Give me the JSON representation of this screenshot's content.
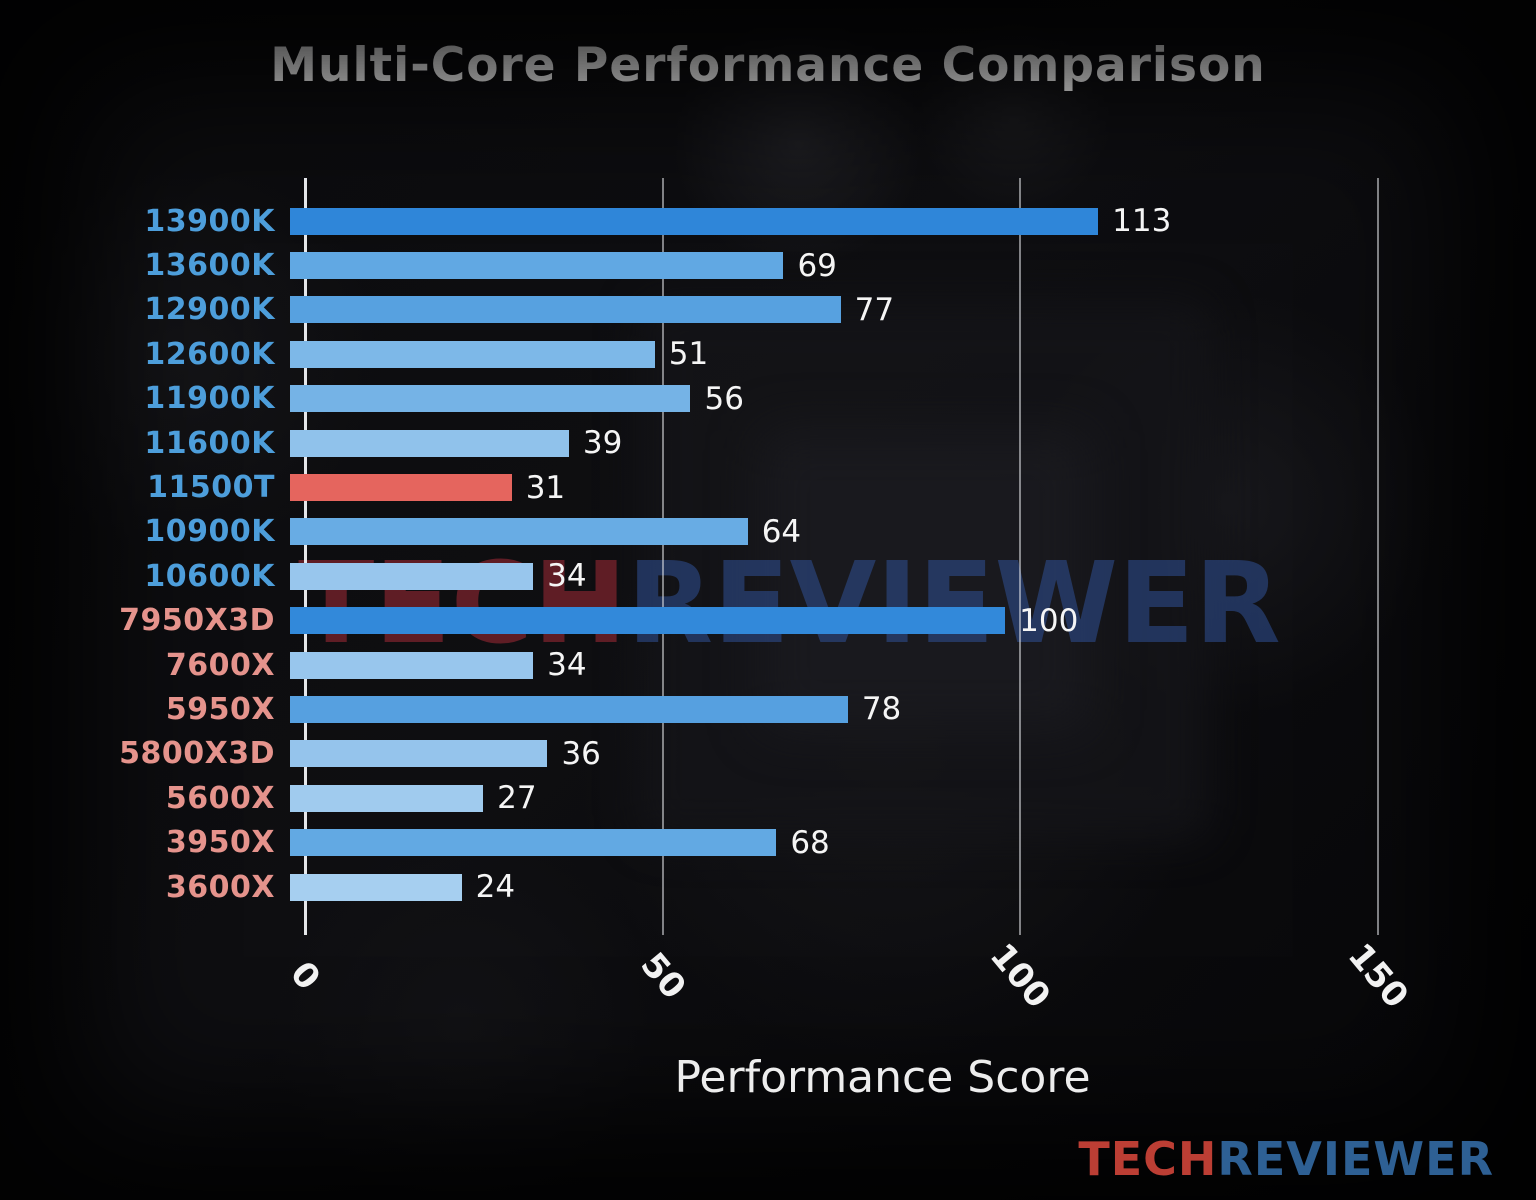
{
  "title": "Multi-Core Performance Comparison",
  "watermark": {
    "part1": "TECH",
    "part2": "REVIEWER"
  },
  "logo": {
    "part1": "TECH",
    "part2": "REVIEWER"
  },
  "colors": {
    "intel_label": "#4d9edb",
    "amd_label": "#e5938c",
    "highlight_bar": "#e5655e",
    "value_text": "#f5f5f5"
  },
  "chart_data": {
    "type": "bar",
    "orientation": "horizontal",
    "title": "Multi-Core Performance Comparison",
    "xlabel": "Performance Score",
    "ylabel": "",
    "xlim": [
      0,
      150
    ],
    "axis_extent": 161.5,
    "grid": true,
    "ticks": [
      0,
      50,
      100,
      150
    ],
    "tick_labels": [
      "0",
      "50",
      "100",
      "150"
    ],
    "categories": [
      "13900K",
      "13600K",
      "12900K",
      "12600K",
      "11900K",
      "11600K",
      "11500T",
      "10900K",
      "10600K",
      "7950X3D",
      "7600X",
      "5950X",
      "5800X3D",
      "5600X",
      "3950X",
      "3600X"
    ],
    "values": [
      113,
      69,
      77,
      51,
      56,
      39,
      31,
      64,
      34,
      100,
      34,
      78,
      36,
      27,
      68,
      24
    ],
    "bars": [
      {
        "label": "13900K",
        "value": 113,
        "color": "#2f86d9",
        "label_color": "#4d9edb",
        "vendor": "intel"
      },
      {
        "label": "13600K",
        "value": 69,
        "color": "#61a8e3",
        "label_color": "#4d9edb",
        "vendor": "intel"
      },
      {
        "label": "12900K",
        "value": 77,
        "color": "#57a1e0",
        "label_color": "#4d9edb",
        "vendor": "intel"
      },
      {
        "label": "12600K",
        "value": 51,
        "color": "#7db8e8",
        "label_color": "#4d9edb",
        "vendor": "intel"
      },
      {
        "label": "11900K",
        "value": 56,
        "color": "#75b3e6",
        "label_color": "#4d9edb",
        "vendor": "intel"
      },
      {
        "label": "11600K",
        "value": 39,
        "color": "#90c2eb",
        "label_color": "#4d9edb",
        "vendor": "intel"
      },
      {
        "label": "11500T",
        "value": 31,
        "color": "#e5655e",
        "label_color": "#4d9edb",
        "vendor": "intel"
      },
      {
        "label": "10900K",
        "value": 64,
        "color": "#68ace4",
        "label_color": "#4d9edb",
        "vendor": "intel"
      },
      {
        "label": "10600K",
        "value": 34,
        "color": "#98c6ed",
        "label_color": "#4d9edb",
        "vendor": "intel"
      },
      {
        "label": "7950X3D",
        "value": 100,
        "color": "#3289da",
        "label_color": "#e5938c",
        "vendor": "amd"
      },
      {
        "label": "7600X",
        "value": 34,
        "color": "#98c6ed",
        "label_color": "#e5938c",
        "vendor": "amd"
      },
      {
        "label": "5950X",
        "value": 78,
        "color": "#56a0e0",
        "label_color": "#e5938c",
        "vendor": "amd"
      },
      {
        "label": "5800X3D",
        "value": 36,
        "color": "#95c4ec",
        "label_color": "#e5938c",
        "vendor": "amd"
      },
      {
        "label": "5600X",
        "value": 27,
        "color": "#a0cbee",
        "label_color": "#e5938c",
        "vendor": "amd"
      },
      {
        "label": "3950X",
        "value": 68,
        "color": "#62a9e3",
        "label_color": "#e5938c",
        "vendor": "amd"
      },
      {
        "label": "3600X",
        "value": 24,
        "color": "#a6cff0",
        "label_color": "#e5938c",
        "vendor": "amd"
      }
    ]
  }
}
